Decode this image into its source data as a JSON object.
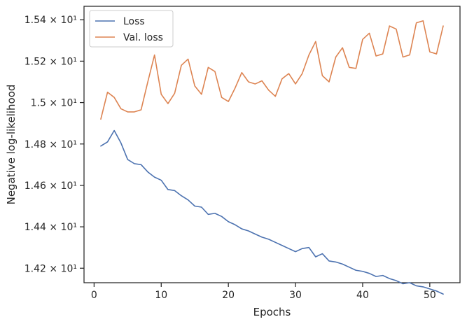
{
  "chart_data": {
    "type": "line",
    "xlabel": "Epochs",
    "ylabel": "Negative log-likelihood",
    "xlim": [
      -1.5,
      54.5
    ],
    "ylim": [
      14.13,
      15.465
    ],
    "x_ticks": [
      0,
      10,
      20,
      30,
      40,
      50
    ],
    "y_ticks": [
      {
        "value": 14.2,
        "label": "1.42 × 10¹"
      },
      {
        "value": 14.4,
        "label": "1.44 × 10¹"
      },
      {
        "value": 14.6,
        "label": "1.46 × 10¹"
      },
      {
        "value": 14.8,
        "label": "1.48 × 10¹"
      },
      {
        "value": 15.0,
        "label": "1.5 × 10¹"
      },
      {
        "value": 15.2,
        "label": "1.52 × 10¹"
      },
      {
        "value": 15.4,
        "label": "1.54 × 10¹"
      }
    ],
    "legend_position": "top-left",
    "grid": false,
    "x": [
      1,
      2,
      3,
      4,
      5,
      6,
      7,
      8,
      9,
      10,
      11,
      12,
      13,
      14,
      15,
      16,
      17,
      18,
      19,
      20,
      21,
      22,
      23,
      24,
      25,
      26,
      27,
      28,
      29,
      30,
      31,
      32,
      33,
      34,
      35,
      36,
      37,
      38,
      39,
      40,
      41,
      42,
      43,
      44,
      45,
      46,
      47,
      48,
      49,
      50,
      51,
      52
    ],
    "series": [
      {
        "name": "Loss",
        "color": "#4c72b0",
        "values": [
          14.79,
          14.81,
          14.865,
          14.805,
          14.725,
          14.705,
          14.7,
          14.665,
          14.64,
          14.625,
          14.58,
          14.575,
          14.55,
          14.53,
          14.5,
          14.495,
          14.46,
          14.465,
          14.45,
          14.425,
          14.41,
          14.39,
          14.38,
          14.365,
          14.35,
          14.34,
          14.325,
          14.31,
          14.295,
          14.28,
          14.295,
          14.3,
          14.255,
          14.27,
          14.235,
          14.23,
          14.22,
          14.205,
          14.19,
          14.185,
          14.175,
          14.16,
          14.165,
          14.15,
          14.14,
          14.125,
          14.13,
          14.115,
          14.11,
          14.1,
          14.09,
          14.075
        ]
      },
      {
        "name": "Val. loss",
        "color": "#dd8452",
        "values": [
          14.92,
          15.05,
          15.025,
          14.97,
          14.955,
          14.955,
          14.965,
          15.1,
          15.23,
          15.04,
          14.995,
          15.045,
          15.18,
          15.21,
          15.08,
          15.04,
          15.17,
          15.15,
          15.025,
          15.005,
          15.07,
          15.145,
          15.1,
          15.09,
          15.105,
          15.06,
          15.03,
          15.115,
          15.14,
          15.09,
          15.14,
          15.23,
          15.295,
          15.13,
          15.1,
          15.22,
          15.265,
          15.17,
          15.165,
          15.305,
          15.335,
          15.225,
          15.235,
          15.37,
          15.355,
          15.22,
          15.23,
          15.385,
          15.395,
          15.245,
          15.235,
          15.37
        ]
      }
    ]
  }
}
